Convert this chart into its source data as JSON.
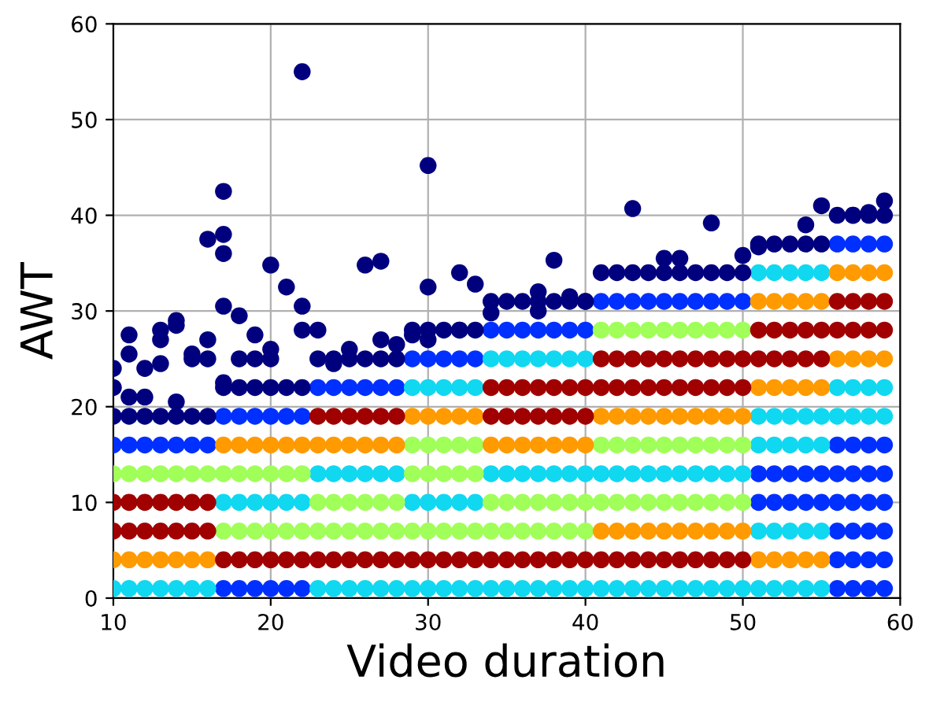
{
  "chart_data": {
    "type": "scatter",
    "xlabel": "Video duration",
    "ylabel": "AWT",
    "xlim": [
      10,
      60
    ],
    "ylim": [
      0,
      60
    ],
    "xticks": [
      10,
      20,
      30,
      40,
      50,
      60
    ],
    "yticks": [
      0,
      10,
      20,
      30,
      40,
      50,
      60
    ],
    "grid": true,
    "marker": "circle",
    "series": [
      {
        "color": "#0030ff",
        "x": [
          10,
          11,
          12,
          13,
          14,
          15,
          16,
          17,
          18,
          19,
          20,
          21,
          22,
          17,
          18,
          19,
          20,
          21,
          22,
          23,
          24,
          25,
          26,
          27,
          28,
          29,
          30,
          31,
          32,
          33,
          34,
          35,
          36,
          37,
          38,
          39,
          40,
          41,
          42,
          43,
          44,
          45,
          46,
          47,
          48,
          49,
          50,
          51,
          52,
          53,
          54,
          55,
          51,
          52,
          53,
          54,
          55,
          56,
          57,
          58,
          59,
          56,
          57,
          58,
          59,
          56,
          57,
          58,
          59,
          56,
          57,
          58,
          59,
          56,
          57,
          58,
          59,
          56,
          57,
          58,
          59,
          56,
          57,
          58,
          59
        ],
        "values": [
          16,
          16,
          16,
          16,
          16,
          16,
          16,
          1,
          1,
          1,
          1,
          1,
          1,
          19,
          19,
          19,
          19,
          19,
          19,
          22,
          22,
          22,
          22,
          22,
          22,
          25,
          25,
          25,
          25,
          25,
          28,
          28,
          28,
          28,
          28,
          28,
          28,
          31,
          31,
          31,
          31,
          31,
          31,
          31,
          31,
          31,
          31,
          10,
          10,
          10,
          10,
          10,
          13,
          13,
          13,
          13,
          13,
          1,
          1,
          1,
          1,
          4,
          4,
          4,
          4,
          7,
          7,
          7,
          7,
          10,
          10,
          10,
          10,
          13,
          13,
          13,
          13,
          16,
          16,
          16,
          16,
          37,
          37,
          37,
          37
        ]
      },
      {
        "color": "#10d8f0",
        "x": [
          10,
          11,
          12,
          13,
          14,
          15,
          16,
          17,
          18,
          19,
          20,
          21,
          22,
          23,
          24,
          25,
          26,
          27,
          28,
          23,
          24,
          25,
          26,
          27,
          28,
          29,
          30,
          31,
          32,
          33,
          29,
          30,
          31,
          32,
          33,
          29,
          30,
          31,
          32,
          33,
          34,
          35,
          36,
          37,
          38,
          39,
          40,
          34,
          35,
          36,
          37,
          38,
          39,
          40,
          34,
          35,
          36,
          37,
          38,
          39,
          40,
          41,
          42,
          43,
          44,
          45,
          46,
          47,
          48,
          49,
          50,
          41,
          42,
          43,
          44,
          45,
          46,
          47,
          48,
          49,
          50,
          51,
          52,
          53,
          54,
          55,
          51,
          52,
          53,
          54,
          55,
          51,
          52,
          53,
          54,
          55,
          51,
          52,
          53,
          54,
          55,
          51,
          52,
          53,
          54,
          55,
          56,
          57,
          58,
          59,
          56,
          57,
          58,
          59
        ],
        "values": [
          1,
          1,
          1,
          1,
          1,
          1,
          1,
          10,
          10,
          10,
          10,
          10,
          10,
          1,
          1,
          1,
          1,
          1,
          1,
          13,
          13,
          13,
          13,
          13,
          13,
          1,
          1,
          1,
          1,
          1,
          10,
          10,
          10,
          10,
          10,
          22,
          22,
          22,
          22,
          22,
          1,
          1,
          1,
          1,
          1,
          1,
          1,
          13,
          13,
          13,
          13,
          13,
          13,
          13,
          25,
          25,
          25,
          25,
          25,
          25,
          25,
          1,
          1,
          1,
          1,
          1,
          1,
          1,
          1,
          1,
          1,
          13,
          13,
          13,
          13,
          13,
          13,
          13,
          13,
          13,
          13,
          1,
          1,
          1,
          1,
          1,
          7,
          7,
          7,
          7,
          7,
          16,
          16,
          16,
          16,
          16,
          19,
          19,
          19,
          19,
          19,
          34,
          34,
          34,
          34,
          34,
          19,
          19,
          19,
          19,
          22,
          22,
          22,
          22
        ]
      },
      {
        "color": "#a0ff58",
        "x": [
          10,
          11,
          12,
          13,
          14,
          15,
          16,
          17,
          18,
          19,
          20,
          21,
          22,
          17,
          18,
          19,
          20,
          21,
          22,
          23,
          24,
          25,
          26,
          27,
          28,
          23,
          24,
          25,
          26,
          27,
          28,
          29,
          30,
          31,
          32,
          33,
          29,
          30,
          31,
          32,
          33,
          29,
          30,
          31,
          32,
          33,
          34,
          35,
          36,
          37,
          38,
          39,
          40,
          34,
          35,
          36,
          37,
          38,
          39,
          40,
          41,
          42,
          43,
          44,
          45,
          46,
          47,
          48,
          49,
          50,
          41,
          42,
          43,
          44,
          45,
          46,
          47,
          48,
          49,
          50,
          41,
          42,
          43,
          44,
          45,
          46,
          47,
          48,
          49,
          50
        ],
        "values": [
          13,
          13,
          13,
          13,
          13,
          13,
          13,
          7,
          7,
          7,
          7,
          7,
          7,
          13,
          13,
          13,
          13,
          13,
          13,
          7,
          7,
          7,
          7,
          7,
          7,
          10,
          10,
          10,
          10,
          10,
          10,
          7,
          7,
          7,
          7,
          7,
          13,
          13,
          13,
          13,
          13,
          16,
          16,
          16,
          16,
          16,
          7,
          7,
          7,
          7,
          7,
          7,
          7,
          10,
          10,
          10,
          10,
          10,
          10,
          10,
          10,
          10,
          10,
          10,
          10,
          10,
          10,
          10,
          10,
          10,
          16,
          16,
          16,
          16,
          16,
          16,
          16,
          16,
          16,
          16,
          28,
          28,
          28,
          28,
          28,
          28,
          28,
          28,
          28,
          28
        ]
      },
      {
        "color": "#ff9a00",
        "x": [
          10,
          11,
          12,
          13,
          14,
          15,
          16,
          17,
          18,
          19,
          20,
          21,
          22,
          23,
          24,
          25,
          26,
          27,
          28,
          29,
          30,
          31,
          32,
          33,
          34,
          35,
          36,
          37,
          38,
          39,
          40,
          41,
          42,
          43,
          44,
          45,
          46,
          47,
          48,
          49,
          50,
          41,
          42,
          43,
          44,
          45,
          46,
          47,
          48,
          49,
          50,
          51,
          52,
          53,
          54,
          55,
          51,
          52,
          53,
          54,
          55,
          51,
          52,
          53,
          54,
          55,
          56,
          57,
          58,
          59,
          56,
          57,
          58,
          59
        ],
        "values": [
          4,
          4,
          4,
          4,
          4,
          4,
          4,
          16,
          16,
          16,
          16,
          16,
          16,
          16,
          16,
          16,
          16,
          16,
          16,
          19,
          19,
          19,
          19,
          19,
          16,
          16,
          16,
          16,
          16,
          16,
          16,
          7,
          7,
          7,
          7,
          7,
          7,
          7,
          7,
          7,
          7,
          19,
          19,
          19,
          19,
          19,
          19,
          19,
          19,
          19,
          19,
          4,
          4,
          4,
          4,
          4,
          22,
          22,
          22,
          22,
          22,
          31,
          31,
          31,
          31,
          31,
          25,
          25,
          25,
          25,
          34,
          34,
          34,
          34
        ]
      },
      {
        "color": "#a00000",
        "x": [
          10,
          11,
          12,
          13,
          14,
          15,
          16,
          10,
          11,
          12,
          13,
          14,
          15,
          16,
          17,
          18,
          19,
          20,
          21,
          22,
          23,
          24,
          25,
          26,
          27,
          28,
          23,
          24,
          25,
          26,
          27,
          28,
          29,
          30,
          31,
          32,
          33,
          34,
          35,
          36,
          37,
          38,
          39,
          40,
          34,
          35,
          36,
          37,
          38,
          39,
          40,
          34,
          35,
          36,
          37,
          38,
          39,
          40,
          41,
          42,
          43,
          44,
          45,
          46,
          47,
          48,
          49,
          50,
          41,
          42,
          43,
          44,
          45,
          46,
          47,
          48,
          49,
          50,
          41,
          42,
          43,
          44,
          45,
          46,
          47,
          48,
          49,
          50,
          51,
          52,
          53,
          54,
          55,
          51,
          52,
          53,
          54,
          55,
          56,
          57,
          58,
          59,
          56,
          57,
          58,
          59
        ],
        "values": [
          7,
          7,
          7,
          7,
          7,
          7,
          7,
          10,
          10,
          10,
          10,
          10,
          10,
          10,
          4,
          4,
          4,
          4,
          4,
          4,
          4,
          4,
          4,
          4,
          4,
          4,
          19,
          19,
          19,
          19,
          19,
          19,
          4,
          4,
          4,
          4,
          4,
          4,
          4,
          4,
          4,
          4,
          4,
          4,
          19,
          19,
          19,
          19,
          19,
          19,
          19,
          22,
          22,
          22,
          22,
          22,
          22,
          22,
          4,
          4,
          4,
          4,
          4,
          4,
          4,
          4,
          4,
          4,
          22,
          22,
          22,
          22,
          22,
          22,
          22,
          22,
          22,
          22,
          25,
          25,
          25,
          25,
          25,
          25,
          25,
          25,
          25,
          25,
          25,
          25,
          25,
          25,
          25,
          28,
          28,
          28,
          28,
          28,
          28,
          28,
          28,
          28,
          31,
          31,
          31,
          31
        ]
      },
      {
        "color": "#00007f",
        "x": [
          10,
          11,
          12,
          13,
          14,
          15,
          16,
          17,
          18,
          19,
          20,
          21,
          22,
          23,
          24,
          25,
          26,
          27,
          28,
          29,
          30,
          31,
          32,
          33,
          34,
          35,
          36,
          37,
          38,
          39,
          40,
          41,
          42,
          43,
          44,
          45,
          46,
          47,
          48,
          49,
          50,
          51,
          52,
          53,
          54,
          55,
          56,
          57,
          58,
          59,
          10,
          10,
          11,
          11,
          11,
          12,
          12,
          13,
          13,
          13,
          14,
          14,
          14,
          15,
          15,
          16,
          16,
          16,
          17,
          17,
          17,
          17,
          17,
          18,
          18,
          19,
          19,
          20,
          20,
          20,
          21,
          22,
          22,
          22,
          23,
          24,
          25,
          26,
          27,
          27,
          28,
          29,
          30,
          30,
          30,
          32,
          32,
          33,
          34,
          37,
          37,
          38,
          39,
          40,
          43,
          45,
          46,
          48,
          50,
          51,
          54,
          55,
          57,
          58,
          59
        ],
        "values": [
          19,
          19,
          19,
          19,
          19,
          19,
          19,
          22,
          22,
          22,
          22,
          22,
          22,
          25,
          25,
          25,
          25,
          25,
          25,
          28,
          28,
          28,
          28,
          28,
          31,
          31,
          31,
          31,
          31,
          31,
          31,
          34,
          34,
          34,
          34,
          34,
          34,
          34,
          34,
          34,
          34,
          37,
          37,
          37,
          37,
          37,
          40,
          40,
          40,
          40,
          22,
          24,
          25.5,
          27.5,
          21,
          24,
          21,
          27,
          28,
          24.5,
          28.5,
          29,
          20.5,
          25,
          25.5,
          37.5,
          27,
          25,
          42.5,
          38,
          36,
          30.5,
          22.5,
          29.5,
          25,
          27.5,
          25,
          34.8,
          26,
          25,
          32.5,
          55,
          30.5,
          28,
          28,
          24.5,
          26,
          34.8,
          35.2,
          27,
          26.5,
          27.5,
          45.2,
          32.5,
          27,
          34,
          28,
          32.8,
          29.8,
          32,
          30,
          35.3,
          31.5,
          31,
          40.7,
          35.5,
          35.5,
          39.2,
          35.8,
          36.7,
          39,
          41,
          40,
          40.3,
          41.5
        ]
      }
    ]
  }
}
